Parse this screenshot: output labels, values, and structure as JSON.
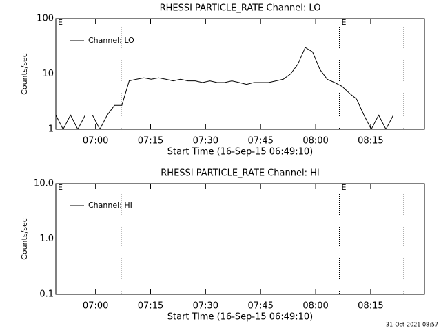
{
  "chart_data": [
    {
      "type": "line",
      "title": "RHESSI PARTICLE_RATE Channel: LO",
      "xlabel": "Start Time (16-Sep-15 06:49:10)",
      "ylabel": "Counts/sec",
      "x": [
        0,
        2,
        4,
        6,
        8,
        10,
        12,
        14,
        16,
        18,
        20,
        22,
        24,
        26,
        28,
        30,
        32,
        34,
        36,
        38,
        40,
        42,
        44,
        46,
        48,
        50,
        52,
        54,
        56,
        58,
        60,
        62,
        64,
        66,
        68,
        70,
        72,
        74,
        76,
        78,
        80,
        82,
        84,
        86,
        88,
        90,
        92,
        94,
        96,
        98,
        100
      ],
      "series": [
        {
          "name": "Channel: LO",
          "color": "#000000",
          "values": [
            1.8,
            1,
            1.8,
            1,
            1.8,
            1.8,
            1,
            1.8,
            2.7,
            2.7,
            7.5,
            8,
            8.5,
            8,
            8.5,
            8,
            7.5,
            8,
            7.5,
            7.5,
            7,
            7.5,
            7,
            7,
            7.5,
            7,
            6.5,
            7,
            7,
            7,
            7.5,
            8,
            10,
            15,
            30,
            25,
            12,
            8,
            7,
            6,
            4.5,
            3.5,
            1.8,
            1,
            1.8,
            1,
            1.8,
            1.8,
            1.8,
            1.8,
            1.8
          ]
        }
      ],
      "xlim": [
        0,
        100.5
      ],
      "ylim": [
        1,
        100
      ],
      "log_y": true,
      "legend": "upper left",
      "xticks": [
        {
          "value": 10.83,
          "label": "07:00"
        },
        {
          "value": 25.83,
          "label": "07:15"
        },
        {
          "value": 40.83,
          "label": "07:30"
        },
        {
          "value": 55.83,
          "label": "07:45"
        },
        {
          "value": 70.83,
          "label": "08:00"
        },
        {
          "value": 85.83,
          "label": "08:15"
        }
      ],
      "yticks": [
        1,
        10,
        100
      ],
      "vlines": [
        17.8,
        77.3,
        94.9
      ],
      "annotations": [
        {
          "text": "E",
          "x": 0
        },
        {
          "text": "E",
          "x": 77.3
        }
      ]
    },
    {
      "type": "line",
      "title": "RHESSI PARTICLE_RATE Channel: HI",
      "xlabel": "Start Time (16-Sep-15 06:49:10)",
      "ylabel": "Counts/sec",
      "x": [
        65,
        68
      ],
      "series": [
        {
          "name": "Channel: HI",
          "color": "#000000",
          "values": [
            1,
            1
          ]
        }
      ],
      "xlim": [
        0,
        100.5
      ],
      "ylim": [
        0.1,
        10
      ],
      "log_y": true,
      "legend": "upper left",
      "xticks": [
        {
          "value": 10.83,
          "label": "07:00"
        },
        {
          "value": 25.83,
          "label": "07:15"
        },
        {
          "value": 40.83,
          "label": "07:30"
        },
        {
          "value": 55.83,
          "label": "07:45"
        },
        {
          "value": 70.83,
          "label": "08:00"
        },
        {
          "value": 85.83,
          "label": "08:15"
        }
      ],
      "yticks": [
        {
          "value": 0.1,
          "label": "0.1"
        },
        {
          "value": 1,
          "label": "1.0"
        },
        {
          "value": 10,
          "label": "10.0"
        }
      ],
      "vlines": [
        17.8,
        77.3,
        94.9
      ],
      "annotations": [
        {
          "text": "E",
          "x": 0
        },
        {
          "text": "E",
          "x": 77.3
        }
      ]
    }
  ],
  "footer": "31-Oct-2021 08:57"
}
